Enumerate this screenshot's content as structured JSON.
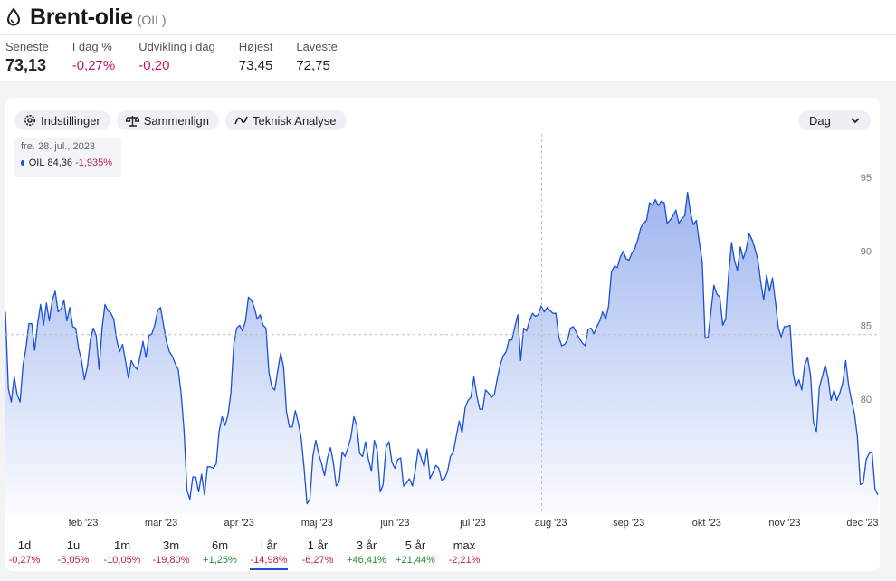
{
  "header": {
    "title": "Brent-olie",
    "ticker": "(OIL)",
    "icon": "drop-icon"
  },
  "stats": [
    {
      "label": "Seneste",
      "value": "73,13",
      "tone": "big"
    },
    {
      "label": "I dag %",
      "value": "-0,27%",
      "tone": "neg"
    },
    {
      "label": "Udvikling i dag",
      "value": "-0,20",
      "tone": "neg"
    },
    {
      "label": "Højest",
      "value": "73,45",
      "tone": ""
    },
    {
      "label": "Laveste",
      "value": "72,75",
      "tone": ""
    }
  ],
  "toolbar": {
    "settings_label": "Indstillinger",
    "compare_label": "Sammenlign",
    "ta_label": "Teknisk Analyse",
    "interval_label": "Dag"
  },
  "tooltip": {
    "date": "fre. 28. jul., 2023",
    "series": "OIL",
    "value": "84,36",
    "change": "-1,935%"
  },
  "colors": {
    "line": "#1a4fd8",
    "negative": "#c41a5b",
    "positive": "#1f8a3b"
  },
  "chart_data": {
    "type": "area",
    "series": [
      {
        "name": "OIL",
        "values": [
          85.9,
          80.7,
          79.8,
          81.5,
          80.3,
          79.8,
          82.3,
          83.4,
          85.1,
          85.1,
          83.3,
          85.1,
          86.4,
          85.0,
          86.5,
          85.3,
          86.7,
          87.3,
          85.9,
          86.1,
          86.7,
          85.3,
          86.2,
          84.9,
          84.8,
          83.4,
          82.6,
          81.3,
          82.2,
          84.0,
          84.8,
          84.3,
          82.0,
          84.8,
          86.4,
          86.0,
          85.8,
          85.4,
          84.0,
          83.2,
          83.7,
          82.6,
          81.4,
          82.6,
          82.2,
          82.0,
          82.9,
          83.9,
          82.8,
          84.3,
          84.4,
          85.0,
          86.0,
          86.2,
          85.0,
          83.9,
          83.2,
          82.9,
          82.4,
          82.0,
          80.4,
          77.9,
          73.8,
          73.2,
          74.7,
          74.7,
          73.7,
          74.9,
          73.5,
          75.4,
          75.4,
          75.3,
          75.6,
          77.8,
          78.8,
          78.2,
          78.9,
          80.4,
          83.7,
          84.8,
          85.0,
          84.6,
          85.3,
          86.9,
          86.7,
          86.2,
          85.4,
          85.7,
          85.0,
          84.8,
          81.8,
          80.8,
          80.6,
          81.9,
          83.1,
          82.2,
          79.1,
          78.1,
          78.1,
          79.2,
          78.4,
          77.4,
          75.3,
          72.9,
          73.2,
          76.1,
          77.2,
          76.3,
          75.6,
          74.8,
          76.0,
          76.7,
          75.7,
          74.1,
          74.4,
          76.4,
          76.1,
          76.7,
          77.4,
          78.8,
          78.2,
          76.3,
          76.1,
          77.1,
          75.9,
          75.1,
          77.2,
          76.5,
          73.7,
          74.2,
          76.7,
          77.1,
          75.7,
          75.3,
          75.9,
          76.0,
          74.1,
          74.3,
          74.6,
          74.1,
          75.2,
          76.6,
          76.0,
          75.4,
          76.6,
          74.6,
          75.0,
          75.5,
          75.3,
          74.5,
          74.6,
          75.1,
          76.1,
          76.4,
          77.5,
          78.5,
          77.7,
          79.4,
          79.9,
          80.1,
          81.5,
          80.2,
          79.3,
          79.3,
          80.6,
          80.4,
          80.1,
          80.3,
          81.4,
          82.3,
          82.9,
          83.2,
          84.0,
          84.0,
          84.9,
          85.7,
          82.6,
          84.8,
          84.6,
          85.3,
          85.8,
          85.6,
          85.7,
          86.3,
          85.9,
          86.2,
          86.0,
          85.8,
          85.8,
          84.2,
          83.6,
          83.7,
          84.0,
          84.8,
          84.9,
          84.5,
          84.1,
          83.8,
          83.6,
          84.7,
          84.8,
          84.4,
          84.9,
          85.3,
          85.9,
          85.4,
          86.3,
          88.6,
          89.0,
          88.9,
          89.6,
          90.0,
          89.5,
          89.4,
          89.9,
          90.2,
          90.8,
          91.6,
          91.9,
          92.1,
          93.3,
          93.1,
          93.5,
          93.1,
          93.4,
          93.3,
          91.9,
          92.1,
          92.4,
          92.8,
          91.9,
          92.2,
          92.4,
          94.0,
          92.6,
          91.8,
          92.1,
          90.6,
          89.3,
          84.1,
          84.2,
          86.0,
          87.7,
          87.1,
          86.9,
          85.0,
          85.4,
          88.4,
          90.6,
          89.4,
          88.7,
          90.3,
          89.5,
          90.1,
          91.2,
          90.8,
          90.2,
          89.4,
          87.9,
          86.7,
          88.4,
          87.3,
          88.2,
          86.6,
          84.8,
          84.2,
          84.9,
          84.9,
          85.0,
          81.8,
          80.8,
          81.3,
          80.6,
          82.3,
          82.8,
          81.6,
          78.4,
          77.8,
          80.8,
          81.5,
          82.3,
          81.4,
          79.9,
          80.6,
          79.9,
          80.4,
          81.1,
          82.6,
          80.9,
          79.9,
          79.0,
          77.4,
          74.2,
          74.3,
          75.9,
          76.3,
          76.4,
          73.9,
          73.5
        ]
      }
    ],
    "x_ticks": [
      "feb '23",
      "mar '23",
      "apr '23",
      "maj '23",
      "jun '23",
      "jul '23",
      "aug '23",
      "sep '23",
      "okt '23",
      "nov '23",
      "dec '23"
    ],
    "y_ticks": [
      80,
      85,
      90,
      95
    ],
    "ylim": [
      72.2,
      98.2
    ],
    "crosshair": {
      "x_label": "aug '23",
      "y": 84.36
    },
    "grid": false,
    "legend": "tooltip top-left"
  },
  "ranges": [
    {
      "label": "1d",
      "change": "-0,27%",
      "tone": "neg",
      "active": false
    },
    {
      "label": "1u",
      "change": "-5,05%",
      "tone": "neg",
      "active": false
    },
    {
      "label": "1m",
      "change": "-10,05%",
      "tone": "neg",
      "active": false
    },
    {
      "label": "3m",
      "change": "-19,80%",
      "tone": "neg",
      "active": false
    },
    {
      "label": "6m",
      "change": "+1,25%",
      "tone": "pos",
      "active": false
    },
    {
      "label": "i år",
      "change": "-14,98%",
      "tone": "neg",
      "active": true
    },
    {
      "label": "1 år",
      "change": "-6,27%",
      "tone": "neg",
      "active": false
    },
    {
      "label": "3 år",
      "change": "+46,41%",
      "tone": "pos",
      "active": false
    },
    {
      "label": "5 år",
      "change": "+21,44%",
      "tone": "pos",
      "active": false
    },
    {
      "label": "max",
      "change": "-2,21%",
      "tone": "neg",
      "active": false
    }
  ]
}
